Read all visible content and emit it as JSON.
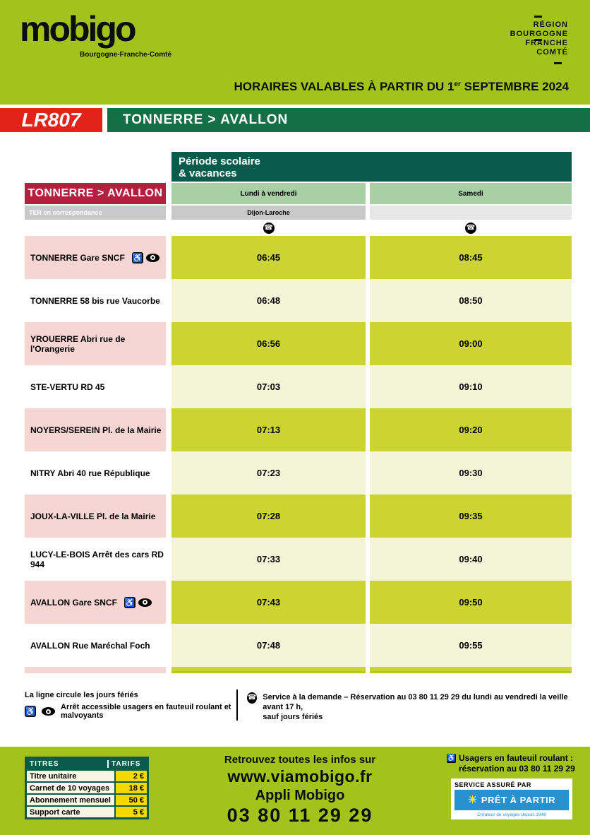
{
  "colors": {
    "lime": "#a4c11c",
    "bright_red": "#e2231a",
    "route_green": "#136f45",
    "dark_green": "#0a5b4c",
    "crimson": "#b51f3e",
    "header_cell_green": "#a9cfa4",
    "gray_cell": "#c9c9c9",
    "gray_cell_light": "#e7e7e7",
    "pink_cell": "#f6d5d2",
    "time_cell_dark": "#ccd434",
    "time_cell_light": "#f4f4d8",
    "tariff_yellow": "#f5d800",
    "tariff_cream": "#f8f5e4",
    "blue": "#2791d0"
  },
  "icons": {
    "phone": "☎",
    "wheelchair": "♿",
    "sun": "☀"
  },
  "header": {
    "logo_text": "mobigo",
    "logo_sub": "Bourgogne-Franche-Comté",
    "region_lines": [
      "RÉGION",
      "BOURGOGNE",
      "FRANCHE",
      "COMTÉ"
    ],
    "validity_prefix": "HORAIRES VALABLES À PARTIR DU 1",
    "validity_sup": "er",
    "validity_suffix": " SEPTEMBRE 2024",
    "line_code": "LR807",
    "route": "TONNERRE > AVALLON"
  },
  "table": {
    "period_line1": "Période scolaire",
    "period_line2": "& vacances",
    "direction_label": "TONNERRE > AVALLON",
    "columns": [
      "Lundi à vendredi",
      "Samedi"
    ],
    "ter_label": "TER en correspondance",
    "ter_col1": "Dijon-Laroche",
    "ter_col2": "",
    "on_demand_columns": [
      true,
      true
    ],
    "stops": [
      {
        "name": "TONNERRE Gare SNCF",
        "accessible": true,
        "times": [
          "06:45",
          "08:45"
        ]
      },
      {
        "name": "TONNERRE 58 bis rue Vaucorbe",
        "accessible": false,
        "times": [
          "06:48",
          "08:50"
        ]
      },
      {
        "name": "YROUERRE Abri rue de l'Orangerie",
        "accessible": false,
        "times": [
          "06:56",
          "09:00"
        ]
      },
      {
        "name": "STE-VERTU RD 45",
        "accessible": false,
        "times": [
          "07:03",
          "09:10"
        ]
      },
      {
        "name": "NOYERS/SEREIN Pl. de la Mairie",
        "accessible": false,
        "times": [
          "07:13",
          "09:20"
        ]
      },
      {
        "name": "NITRY Abri 40 rue République",
        "accessible": false,
        "times": [
          "07:23",
          "09:30"
        ]
      },
      {
        "name": "JOUX-LA-VILLE Pl. de la Mairie",
        "accessible": false,
        "times": [
          "07:28",
          "09:35"
        ]
      },
      {
        "name": "LUCY-LE-BOIS Arrêt des cars RD 944",
        "accessible": false,
        "times": [
          "07:33",
          "09:40"
        ]
      },
      {
        "name": "AVALLON Gare SNCF",
        "accessible": true,
        "times": [
          "07:43",
          "09:50"
        ]
      },
      {
        "name": "AVALLON Rue Maréchal Foch",
        "accessible": false,
        "times": [
          "07:48",
          "09:55"
        ]
      }
    ]
  },
  "notes": {
    "holidays": "La ligne circule les jours fériés",
    "accessibility": "Arrêt accessible usagers en fauteuil roulant et malvoyants",
    "demand_line1": "Service à la demande – Réservation au 03 80 11 29 29 du lundi au vendredi la veille avant 17 h,",
    "demand_line2": "sauf jours fériés"
  },
  "footer": {
    "tariffs": {
      "header_titles": "TITRES",
      "header_prices": "TARIFS",
      "rows": [
        {
          "label": "Titre unitaire",
          "price": "2 €"
        },
        {
          "label": "Carnet de 10 voyages",
          "price": "18 €"
        },
        {
          "label": "Abonnement mensuel",
          "price": "50 €"
        },
        {
          "label": "Support carte",
          "price": "5 €"
        }
      ]
    },
    "info_line1": "Retrouvez toutes les infos sur",
    "info_line2": "www.viamobigo.fr",
    "info_line3": "Appli Mobigo",
    "info_line4": "03 80 11 29 29",
    "wheelchair_line1": "Usagers en fauteuil roulant :",
    "wheelchair_line2": "réservation au 03 80 11 29 29",
    "service_label": "SERVICE ASSURÉ PAR",
    "service_brand": "PRÊT À PARTIR",
    "service_tagline": "Créateur de voyages depuis 1948"
  }
}
